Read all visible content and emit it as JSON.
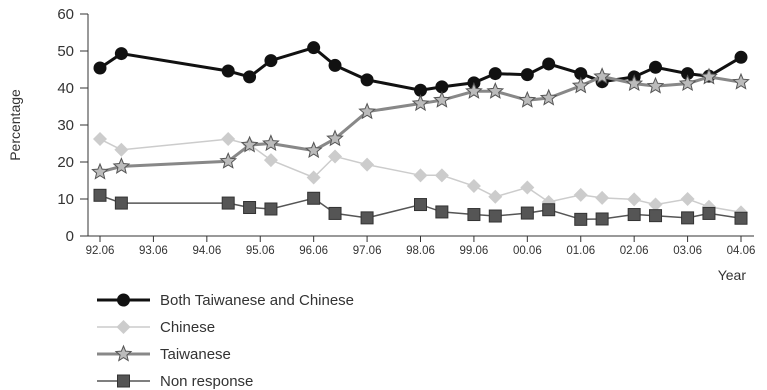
{
  "chart_data": {
    "type": "line",
    "xlabel": "Year",
    "ylabel": "Percentage",
    "ylim": [
      0,
      60
    ],
    "yticks": [
      0,
      10,
      20,
      30,
      40,
      50,
      60
    ],
    "xlim": [
      92.0,
      104.5
    ],
    "xticks": [
      {
        "label": "92.06",
        "value": 92.5
      },
      {
        "label": "93.06",
        "value": 93.5
      },
      {
        "label": "94.06",
        "value": 94.5
      },
      {
        "label": "95.06",
        "value": 95.5
      },
      {
        "label": "96.06",
        "value": 96.5
      },
      {
        "label": "97.06",
        "value": 97.5
      },
      {
        "label": "98.06",
        "value": 98.5
      },
      {
        "label": "99.06",
        "value": 99.5
      },
      {
        "label": "00.06",
        "value": 100.5
      },
      {
        "label": "01.06",
        "value": 101.5
      },
      {
        "label": "02.06",
        "value": 102.5
      },
      {
        "label": "03.06",
        "value": 103.5
      },
      {
        "label": "04.06",
        "value": 104.5
      }
    ],
    "grid": false,
    "legend_position": "bottom-left",
    "series": [
      {
        "name": "Both Taiwanese and Chinese",
        "color": "#111111",
        "marker": "circle",
        "x": [
          92.5,
          92.9,
          94.9,
          95.3,
          95.7,
          96.5,
          96.9,
          97.5,
          98.5,
          98.9,
          99.5,
          99.9,
          100.5,
          100.9,
          101.5,
          101.9,
          102.5,
          102.9,
          103.5,
          103.9,
          104.5
        ],
        "y": [
          45.4,
          49.3,
          44.6,
          43.0,
          47.4,
          50.9,
          46.1,
          42.2,
          39.4,
          40.3,
          41.4,
          43.9,
          43.6,
          46.5,
          43.9,
          41.7,
          43.0,
          45.6,
          43.9,
          43.2,
          48.3
        ]
      },
      {
        "name": "Chinese",
        "color": "#cccccc",
        "marker": "diamond",
        "x": [
          92.5,
          92.9,
          94.9,
          95.3,
          95.7,
          96.5,
          96.9,
          97.5,
          98.5,
          98.9,
          99.5,
          99.9,
          100.5,
          100.9,
          101.5,
          101.9,
          102.5,
          102.9,
          103.5,
          103.9,
          104.5
        ],
        "y": [
          26.2,
          23.3,
          26.2,
          24.7,
          20.5,
          15.8,
          21.5,
          19.3,
          16.4,
          16.4,
          13.5,
          10.6,
          13.1,
          9.2,
          11.1,
          10.3,
          9.9,
          8.5,
          10.0,
          7.9,
          6.4
        ]
      },
      {
        "name": "Taiwanese",
        "color": "#888888",
        "marker": "star",
        "x": [
          92.5,
          92.9,
          94.9,
          95.3,
          95.7,
          96.5,
          96.9,
          97.5,
          98.5,
          98.9,
          99.5,
          99.9,
          100.5,
          100.9,
          101.5,
          101.9,
          102.5,
          102.9,
          103.5,
          103.9,
          104.5
        ],
        "y": [
          17.3,
          18.8,
          20.2,
          24.6,
          25.0,
          23.1,
          26.3,
          33.6,
          35.8,
          36.7,
          39.1,
          39.1,
          36.7,
          37.3,
          40.6,
          43.1,
          41.2,
          40.5,
          41.2,
          43.0,
          41.6
        ]
      },
      {
        "name": "Non response",
        "color": "#555555",
        "marker": "square",
        "x": [
          92.5,
          92.9,
          94.9,
          95.3,
          95.7,
          96.5,
          96.9,
          97.5,
          98.5,
          98.9,
          99.5,
          99.9,
          100.5,
          100.9,
          101.5,
          101.9,
          102.5,
          102.9,
          103.5,
          103.9,
          104.5
        ],
        "y": [
          11.0,
          8.9,
          8.9,
          7.7,
          7.3,
          10.2,
          6.1,
          4.9,
          8.5,
          6.5,
          5.8,
          5.4,
          6.2,
          7.1,
          4.5,
          4.6,
          5.8,
          5.5,
          4.9,
          6.1,
          4.8
        ]
      }
    ]
  }
}
